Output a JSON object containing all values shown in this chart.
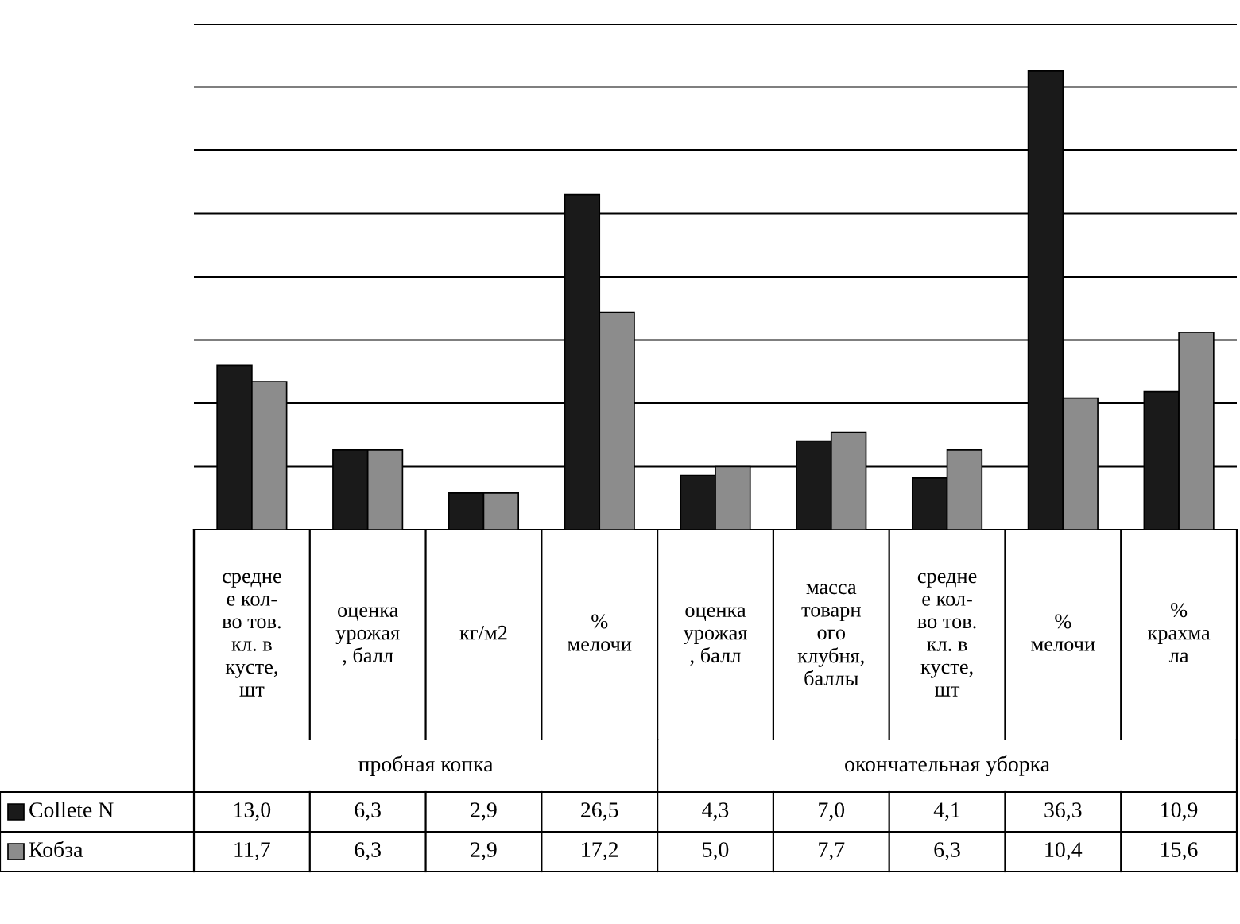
{
  "chart_data": {
    "type": "bar",
    "categories": [
      "средне\nе кол-\nво тов.\nкл. в\nкусте,\nшт",
      "оценка\nурожая\n, балл",
      "кг/м2",
      "%\nмелочи",
      "оценка\nурожая\n, балл",
      "масса\nтоварн\nого\nклубня,\nбаллы",
      "средне\nе кол-\nво тов.\nкл. в\nкусте,\nшт",
      "%\nмелочи",
      "%\nкрахма\nла"
    ],
    "series": [
      {
        "name": "Collete N",
        "color": "#1a1a1a",
        "values": [
          13.0,
          6.3,
          2.9,
          26.5,
          4.3,
          7.0,
          4.1,
          36.3,
          10.9
        ],
        "value_labels": [
          "13,0",
          "6,3",
          "2,9",
          "26,5",
          "4,3",
          "7,0",
          "4,1",
          "36,3",
          "10,9"
        ]
      },
      {
        "name": "Кобза",
        "color": "#8c8c8c",
        "values": [
          11.7,
          6.3,
          2.9,
          17.2,
          5.0,
          7.7,
          6.3,
          10.4,
          15.6
        ],
        "value_labels": [
          "11,7",
          "6,3",
          "2,9",
          "17,2",
          "5,0",
          "7,7",
          "6,3",
          "10,4",
          "15,6"
        ]
      }
    ],
    "annotations": [
      "пробная копка",
      "окончательная уборка"
    ],
    "ylim": [
      0,
      40
    ],
    "yticks": [
      {
        "value": 0,
        "label": null
      },
      {
        "value": 5,
        "label": null
      },
      {
        "value": 10,
        "label": null
      },
      {
        "value": 15,
        "label": null
      },
      {
        "value": 20,
        "label": null
      },
      {
        "value": 25,
        "label": null
      },
      {
        "value": 30,
        "label": null
      },
      {
        "value": 35,
        "label": null
      },
      {
        "value": 40,
        "label": null
      }
    ],
    "grid": "y",
    "legend": "left"
  }
}
